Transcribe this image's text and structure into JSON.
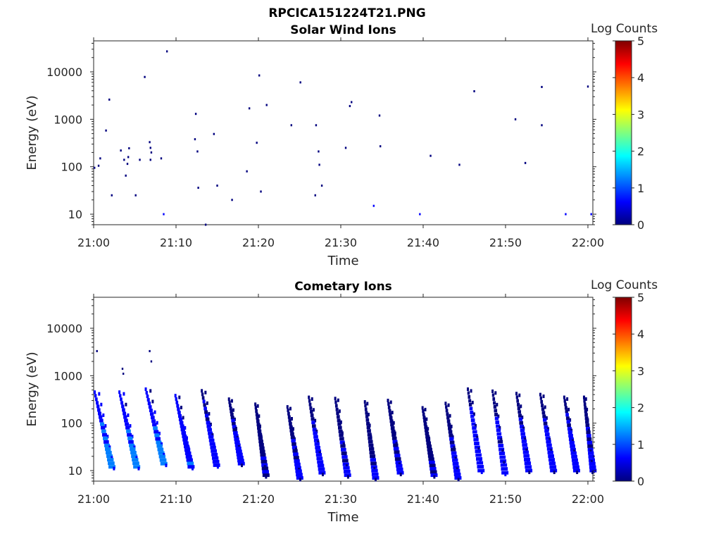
{
  "figure_title": "RPCICA151224T21.PNG",
  "colormap": [
    "#00007f",
    "#0000ff",
    "#007fff",
    "#00ffff",
    "#7fff7f",
    "#ffff00",
    "#ff7f00",
    "#ff0000",
    "#7f0000"
  ],
  "chart_data": [
    {
      "type": "heatmap",
      "title": "Solar Wind Ions",
      "xlabel": "Time",
      "ylabel": "Energy (eV)",
      "x_ticks": [
        "21:00",
        "21:10",
        "21:20",
        "21:30",
        "21:40",
        "21:50",
        "22:00"
      ],
      "x_range_min": [
        0,
        60.6
      ],
      "y_ticks": [
        10,
        100,
        1000,
        10000
      ],
      "y_scale": "log",
      "y_range_ev": [
        6,
        45000
      ],
      "colorbar": {
        "label": "Log Counts",
        "ticks": [
          0,
          1,
          2,
          3,
          4,
          5
        ],
        "range": [
          0,
          5
        ]
      },
      "cells": [
        [
          0.0,
          95,
          0.2
        ],
        [
          0.5,
          105,
          0.2
        ],
        [
          0.7,
          150,
          0.2
        ],
        [
          1.4,
          580,
          0.2
        ],
        [
          1.8,
          2600,
          0.2
        ],
        [
          2.1,
          25,
          0.3
        ],
        [
          3.2,
          220,
          0.2
        ],
        [
          3.6,
          140,
          0.2
        ],
        [
          3.8,
          65,
          0.3
        ],
        [
          4.1,
          160,
          0.2
        ],
        [
          4.2,
          245,
          0.2
        ],
        [
          4.0,
          115,
          0.2
        ],
        [
          5.0,
          25,
          0.3
        ],
        [
          5.5,
          140,
          0.2
        ],
        [
          6.1,
          7800,
          0.2
        ],
        [
          6.7,
          330,
          0.2
        ],
        [
          6.8,
          250,
          0.2
        ],
        [
          6.9,
          200,
          0.2
        ],
        [
          6.8,
          140,
          0.2
        ],
        [
          8.1,
          150,
          0.2
        ],
        [
          8.4,
          10,
          0.4
        ],
        [
          8.8,
          27000,
          0.2
        ],
        [
          12.3,
          1300,
          0.2
        ],
        [
          12.2,
          380,
          0.2
        ],
        [
          12.5,
          210,
          0.2
        ],
        [
          12.6,
          36,
          0.3
        ],
        [
          13.5,
          6,
          0.2
        ],
        [
          14.5,
          490,
          0.2
        ],
        [
          14.9,
          40,
          0.3
        ],
        [
          16.7,
          20,
          0.3
        ],
        [
          18.5,
          80,
          0.2
        ],
        [
          18.8,
          1700,
          0.2
        ],
        [
          19.7,
          320,
          0.2
        ],
        [
          20.0,
          8400,
          0.2
        ],
        [
          20.2,
          30,
          0.3
        ],
        [
          20.9,
          2000,
          0.2
        ],
        [
          23.9,
          750,
          0.2
        ],
        [
          25.0,
          6000,
          0.2
        ],
        [
          26.9,
          750,
          0.2
        ],
        [
          27.2,
          210,
          0.2
        ],
        [
          27.3,
          110,
          0.2
        ],
        [
          27.6,
          40,
          0.3
        ],
        [
          26.8,
          25,
          0.3
        ],
        [
          30.5,
          250,
          0.2
        ],
        [
          31.0,
          1900,
          0.2
        ],
        [
          31.2,
          2300,
          0.2
        ],
        [
          33.9,
          15,
          0.4
        ],
        [
          34.6,
          1200,
          0.2
        ],
        [
          34.7,
          270,
          0.2
        ],
        [
          39.5,
          10,
          0.4
        ],
        [
          40.8,
          170,
          0.2
        ],
        [
          44.3,
          110,
          0.2
        ],
        [
          46.1,
          3900,
          0.2
        ],
        [
          51.1,
          1000,
          0.2
        ],
        [
          52.3,
          120,
          0.2
        ],
        [
          54.3,
          4800,
          0.2
        ],
        [
          54.3,
          750,
          0.2
        ],
        [
          57.2,
          10,
          0.4
        ],
        [
          59.9,
          4900,
          0.2
        ],
        [
          60.3,
          10,
          0.4
        ]
      ]
    },
    {
      "type": "heatmap",
      "title": "Cometary Ions",
      "xlabel": "Time",
      "ylabel": "Energy (eV)",
      "x_ticks": [
        "21:00",
        "21:10",
        "21:20",
        "21:30",
        "21:40",
        "21:50",
        "22:00"
      ],
      "x_range_min": [
        0,
        60.6
      ],
      "y_ticks": [
        10,
        100,
        1000,
        10000
      ],
      "y_scale": "log",
      "y_range_ev": [
        6,
        45000
      ],
      "colorbar": {
        "label": "Log Counts",
        "ticks": [
          0,
          1,
          2,
          3,
          4,
          5
        ],
        "range": [
          0,
          5
        ]
      },
      "cells": [
        [
          0.3,
          3300,
          0.2
        ],
        [
          3.4,
          1400,
          0.2
        ],
        [
          3.5,
          1100,
          0.2
        ],
        [
          6.7,
          3300,
          0.2
        ],
        [
          6.9,
          2000,
          0.2
        ]
      ],
      "bursts": [
        [
          0.0,
          450,
          12,
          1.8,
          1.6
        ],
        [
          3.0,
          450,
          12,
          1.8,
          1.5
        ],
        [
          6.2,
          520,
          14,
          1.9,
          1.4
        ],
        [
          9.8,
          380,
          12,
          1.6,
          1.0
        ],
        [
          13.0,
          480,
          13,
          1.5,
          0.8
        ],
        [
          16.3,
          320,
          14,
          1.2,
          0.6
        ],
        [
          19.5,
          250,
          8,
          1.0,
          0.4
        ],
        [
          23.4,
          220,
          7,
          1.2,
          0.5
        ],
        [
          26.0,
          350,
          9,
          1.3,
          0.6
        ],
        [
          29.2,
          330,
          8,
          1.2,
          0.5
        ],
        [
          32.8,
          280,
          7,
          1.0,
          0.4
        ],
        [
          35.6,
          300,
          9,
          1.2,
          0.5
        ],
        [
          39.8,
          210,
          8,
          1.1,
          0.4
        ],
        [
          42.6,
          260,
          7,
          1.2,
          0.5
        ],
        [
          45.3,
          520,
          10,
          1.3,
          0.7
        ],
        [
          48.3,
          470,
          9,
          1.2,
          0.6
        ],
        [
          51.2,
          420,
          10,
          1.2,
          0.6
        ],
        [
          54.1,
          400,
          10,
          1.3,
          0.6
        ],
        [
          57.0,
          350,
          10,
          1.2,
          0.7
        ],
        [
          59.4,
          350,
          10,
          0.8,
          0.6
        ]
      ]
    }
  ]
}
